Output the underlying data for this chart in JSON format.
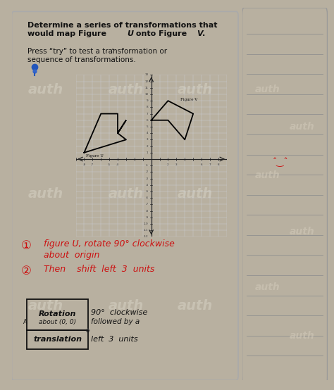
{
  "outer_bg": "#b8b0a0",
  "paper_color": "#fafaf8",
  "right_panel_color": "#f8f8f6",
  "title_line1": "Determine a series of transformations that",
  "title_line2_pre": "would map Figure ",
  "title_u": "U",
  "title_mid": " onto Figure ",
  "title_v": "V",
  "title_end": ".",
  "subtitle_line1": "Press “try” to test a transformation or",
  "subtitle_line2": "sequence of transformations.",
  "fig_u_label": "Figure U",
  "fig_v_label": "Figure V",
  "figure_u_x": [
    -8,
    -6,
    -4,
    -4,
    -3,
    -4,
    -3,
    -8
  ],
  "figure_u_y": [
    1,
    7,
    7,
    4,
    6,
    4,
    3,
    1
  ],
  "figure_v_x": [
    0,
    2,
    5,
    4,
    2,
    0
  ],
  "figure_v_y": [
    6,
    9,
    7,
    3,
    6,
    6
  ],
  "axis_xlim": [
    -9,
    9
  ],
  "axis_ylim": [
    -12,
    13
  ],
  "step_color": "#cc1111",
  "box_edge_color": "#111111",
  "text_color": "#111111",
  "watermark_color": "#d8d0c0",
  "line_color": "#909090"
}
